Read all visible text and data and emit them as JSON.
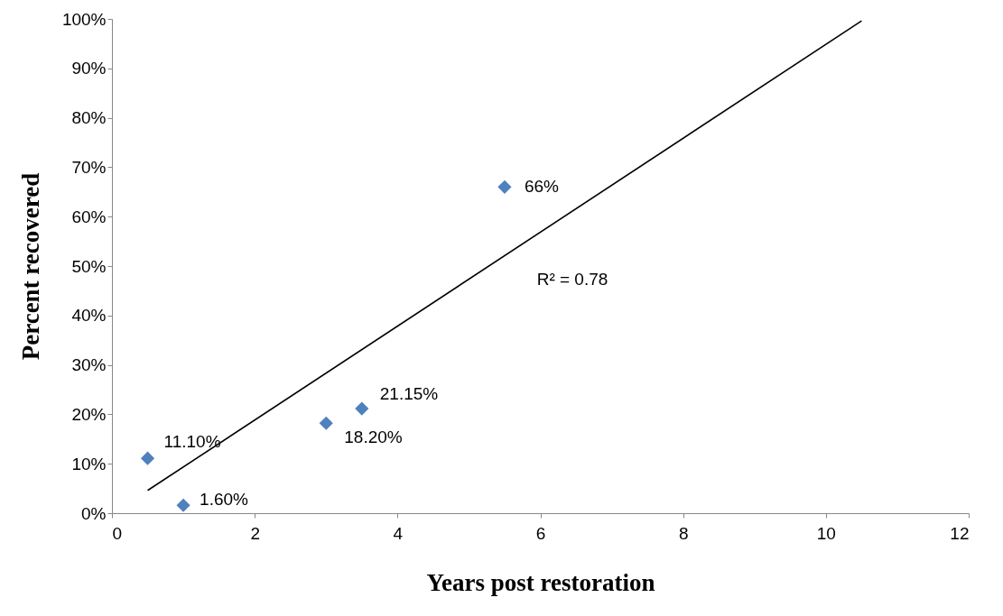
{
  "chart_data": {
    "type": "scatter",
    "xlabel": "Years post restoration",
    "ylabel": "Percent recovered",
    "xlim": [
      0,
      12
    ],
    "xticks": [
      0,
      2,
      4,
      6,
      8,
      10,
      12
    ],
    "ylim": [
      0,
      100
    ],
    "yticks": [
      {
        "value": 0,
        "label": "0%"
      },
      {
        "value": 10,
        "label": "10%"
      },
      {
        "value": 20,
        "label": "20%"
      },
      {
        "value": 30,
        "label": "30%"
      },
      {
        "value": 40,
        "label": "40%"
      },
      {
        "value": 50,
        "label": "50%"
      },
      {
        "value": 60,
        "label": "60%"
      },
      {
        "value": 70,
        "label": "70%"
      },
      {
        "value": 80,
        "label": "80%"
      },
      {
        "value": 90,
        "label": "90%"
      },
      {
        "value": 100,
        "label": "100%"
      }
    ],
    "series": [
      {
        "color": "#4f81bd",
        "x": [
          0.5,
          1,
          3,
          3.5,
          5.5
        ],
        "values": [
          11.1,
          1.6,
          18.2,
          21.15,
          66
        ],
        "value_labels": [
          "11.10%",
          "1.60%",
          "18.20%",
          "21.15%",
          "66%"
        ],
        "marker": "diamond"
      },
      {
        "type": "line",
        "color": "#000000",
        "x": [
          0.5,
          10.5
        ],
        "values": [
          4.6,
          99.6
        ],
        "marker": "none",
        "line_style": "solid"
      }
    ],
    "annotations": [
      "R² = 0.78"
    ],
    "grid": false
  }
}
